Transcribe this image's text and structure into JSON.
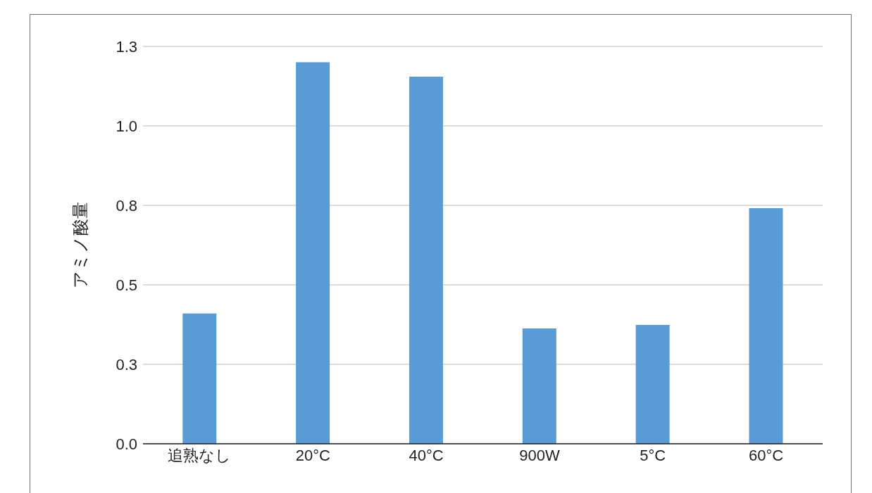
{
  "chart_data": {
    "type": "bar",
    "ylabel": "アミノ酸量",
    "categories": [
      "追熟なし",
      "20°C",
      "40°C",
      "900W",
      "5°C",
      "60°C"
    ],
    "values": [
      0.41,
      1.2,
      1.155,
      0.363,
      0.374,
      0.741
    ],
    "color": "#5b9bd5",
    "ylim": [
      0,
      1.25
    ],
    "yticks": [
      {
        "value": 0,
        "label": "0.0"
      },
      {
        "value": 0.25,
        "label": "0.3"
      },
      {
        "value": 0.5,
        "label": "0.5"
      },
      {
        "value": 0.75,
        "label": "0.8"
      },
      {
        "value": 1,
        "label": "1.0"
      },
      {
        "value": 1.25,
        "label": "1.3"
      }
    ],
    "grid": "y",
    "legend": false
  }
}
